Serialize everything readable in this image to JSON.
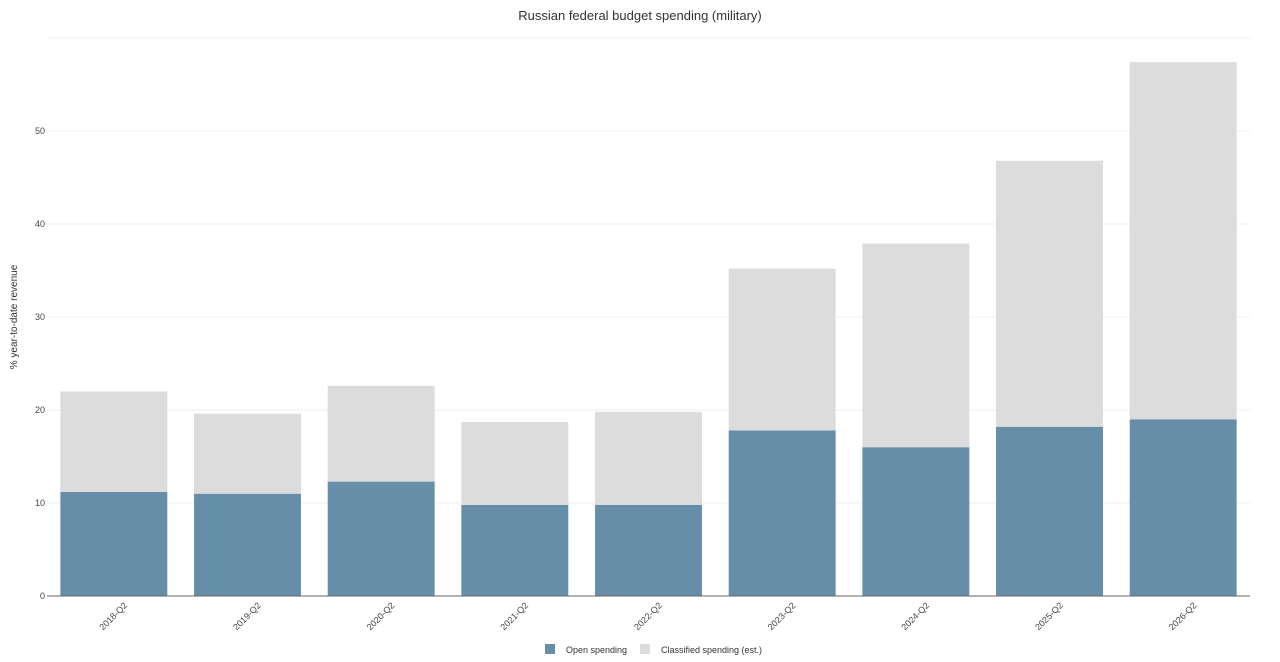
{
  "chart_data": {
    "type": "bar",
    "stacked": true,
    "title": "Russian federal budget spending (military)",
    "xlabel": "",
    "ylabel": "% year-to-date revenue",
    "ylim": [
      0,
      60
    ],
    "yticks": [
      0,
      10,
      20,
      30,
      40,
      50
    ],
    "grid": true,
    "legend_position": "bottom-center",
    "categories": [
      "2018-Q2",
      "2019-Q2",
      "2020-Q2",
      "2021-Q2",
      "2022-Q2",
      "2023-Q2",
      "2024-Q2",
      "2025-Q2",
      "2026-Q2"
    ],
    "series": [
      {
        "name": "Open spending",
        "color": "#678ea9",
        "values": [
          11.2,
          11.0,
          12.3,
          9.8,
          9.8,
          17.8,
          16.0,
          18.2,
          19.0
        ]
      },
      {
        "name": "Classified spending (est.)",
        "color": "#dcdcdc",
        "values": [
          10.8,
          8.6,
          10.3,
          8.9,
          10.0,
          17.4,
          21.9,
          28.6,
          38.4
        ]
      }
    ]
  }
}
